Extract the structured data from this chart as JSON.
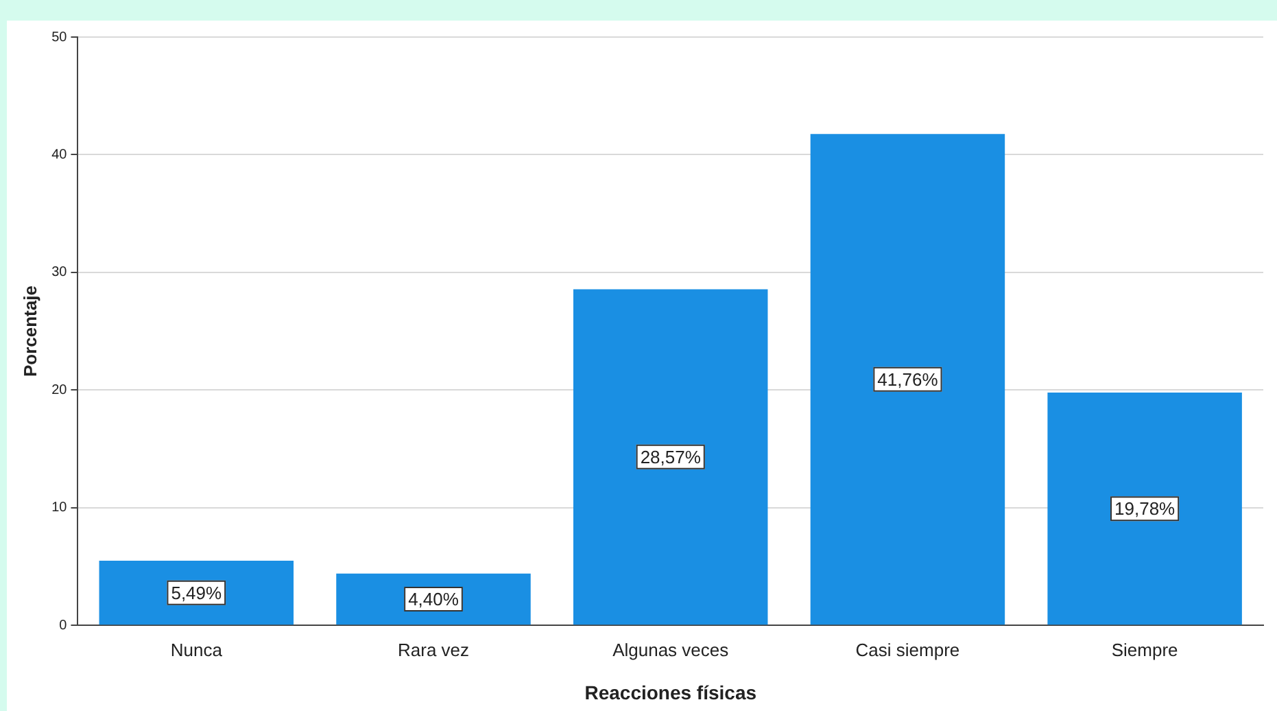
{
  "chart_data": {
    "type": "bar",
    "xlabel": "Reacciones físicas",
    "ylabel": "Porcentaje",
    "categories": [
      "Nunca",
      "Rara vez",
      "Algunas veces",
      "Casi siempre",
      "Siempre"
    ],
    "values": [
      5.49,
      4.4,
      28.57,
      41.76,
      19.78
    ],
    "value_labels": [
      "5,49%",
      "4,40%",
      "28,57%",
      "41,76%",
      "19,78%"
    ],
    "color": "#1a8fe3",
    "ylim": [
      0,
      50
    ],
    "yticks": [
      0,
      10,
      20,
      30,
      40,
      50
    ],
    "grid": "y",
    "legend": false
  }
}
